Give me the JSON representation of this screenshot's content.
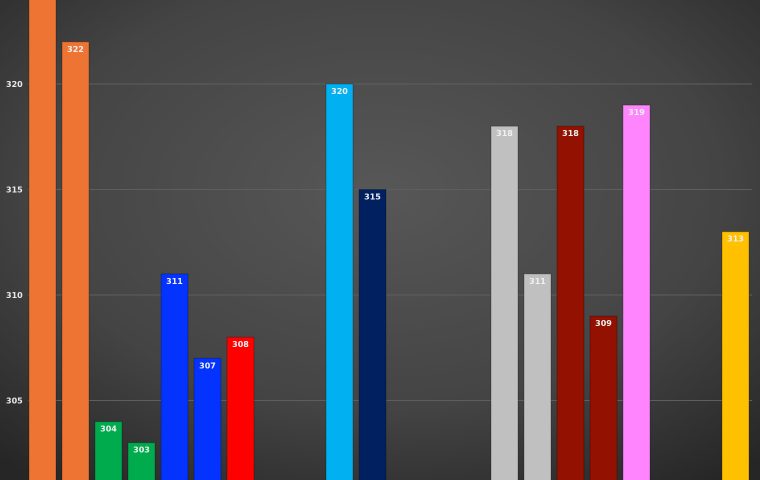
{
  "chart_data": {
    "type": "bar",
    "title": "",
    "xlabel": "",
    "ylabel": "",
    "ylim": [
      301.2,
      324
    ],
    "yticks": [
      305,
      310,
      315,
      320
    ],
    "grid": true,
    "legend": "none",
    "bars": [
      {
        "slot": 0,
        "value": 325,
        "label": "",
        "color": "#ED7433"
      },
      {
        "slot": 1,
        "value": 322,
        "label": "322",
        "color": "#ED7433"
      },
      {
        "slot": 2,
        "value": 304,
        "label": "304",
        "color": "#00AB4E"
      },
      {
        "slot": 3,
        "value": 303,
        "label": "303",
        "color": "#00AB4E"
      },
      {
        "slot": 4,
        "value": 311,
        "label": "311",
        "color": "#0433FF"
      },
      {
        "slot": 5,
        "value": 307,
        "label": "307",
        "color": "#0433FF"
      },
      {
        "slot": 6,
        "value": 308,
        "label": "308",
        "color": "#FF0000"
      },
      {
        "slot": 9,
        "value": 320,
        "label": "320",
        "color": "#00B0F0"
      },
      {
        "slot": 10,
        "value": 315,
        "label": "315",
        "color": "#002060"
      },
      {
        "slot": 14,
        "value": 318,
        "label": "318",
        "color": "#C0C0C0"
      },
      {
        "slot": 15,
        "value": 311,
        "label": "311",
        "color": "#C0C0C0"
      },
      {
        "slot": 16,
        "value": 318,
        "label": "318",
        "color": "#921100"
      },
      {
        "slot": 17,
        "value": 309,
        "label": "309",
        "color": "#921100"
      },
      {
        "slot": 18,
        "value": 319,
        "label": "319",
        "color": "#FF85FF"
      },
      {
        "slot": 21,
        "value": 313,
        "label": "313",
        "color": "#FFC000"
      }
    ]
  }
}
